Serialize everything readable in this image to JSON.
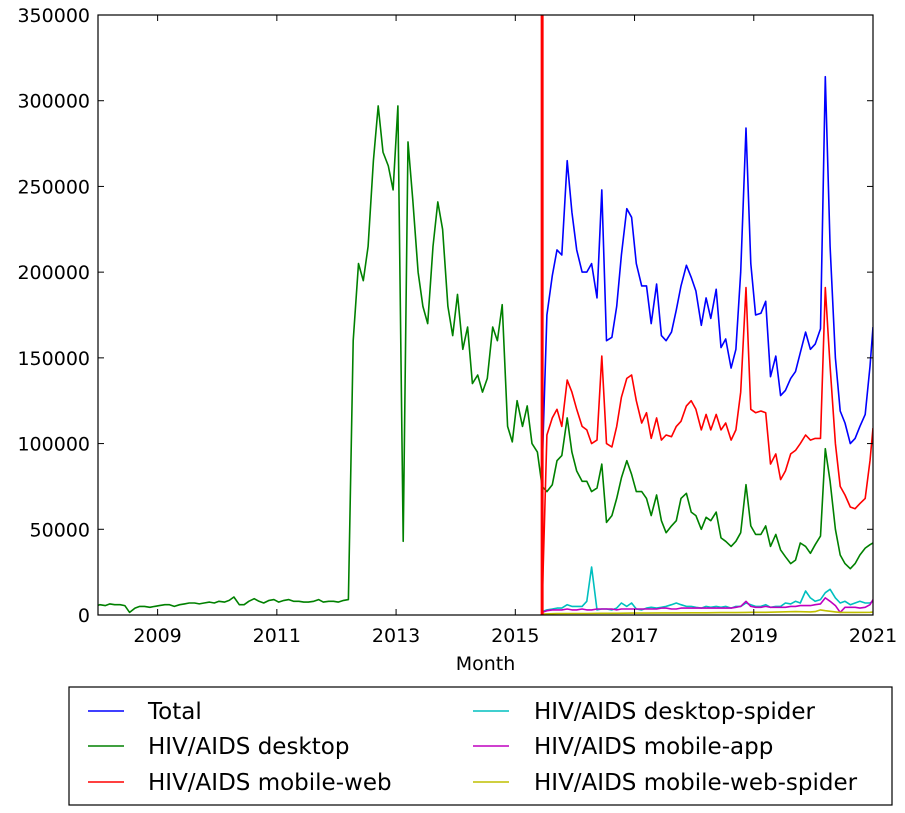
{
  "chart_data": {
    "type": "line",
    "title": "",
    "xlabel": "Month",
    "ylabel": "",
    "xlim": [
      2008.0,
      2021.0
    ],
    "ylim": [
      0,
      350000
    ],
    "grid": false,
    "legend_placement": "bottom-outside",
    "x_ticks": [
      2009,
      2011,
      2013,
      2015,
      2017,
      2019,
      2021
    ],
    "x_tick_labels": [
      "2009",
      "2011",
      "2013",
      "2015",
      "2017",
      "2019",
      "2021"
    ],
    "y_ticks": [
      0,
      50000,
      100000,
      150000,
      200000,
      250000,
      300000,
      350000
    ],
    "y_tick_labels": [
      "0",
      "50000",
      "100000",
      "150000",
      "200000",
      "250000",
      "300000",
      "350000"
    ],
    "marker_line": {
      "x": 2015.45,
      "color": "#ff0000"
    },
    "series": [
      {
        "name": "Total",
        "color": "#0000ff",
        "x": [
          2015.45,
          2015.53,
          2015.62,
          2015.7,
          2015.78,
          2015.87,
          2015.95,
          2016.03,
          2016.12,
          2016.2,
          2016.28,
          2016.37,
          2016.45,
          2016.53,
          2016.62,
          2016.7,
          2016.78,
          2016.87,
          2016.95,
          2017.03,
          2017.12,
          2017.2,
          2017.28,
          2017.37,
          2017.45,
          2017.53,
          2017.62,
          2017.7,
          2017.78,
          2017.87,
          2017.95,
          2018.03,
          2018.12,
          2018.2,
          2018.28,
          2018.37,
          2018.45,
          2018.53,
          2018.62,
          2018.7,
          2018.78,
          2018.87,
          2018.95,
          2019.03,
          2019.12,
          2019.2,
          2019.28,
          2019.37,
          2019.45,
          2019.53,
          2019.62,
          2019.7,
          2019.78,
          2019.87,
          2019.95,
          2020.03,
          2020.12,
          2020.2,
          2020.28,
          2020.37,
          2020.45,
          2020.53,
          2020.62,
          2020.7,
          2020.78,
          2020.87,
          2020.95,
          2021.0
        ],
        "y": [
          85000,
          175000,
          198000,
          213000,
          210000,
          265000,
          235000,
          213000,
          200000,
          200000,
          205000,
          185000,
          248000,
          160000,
          162000,
          180000,
          210000,
          237000,
          232000,
          205000,
          192000,
          192000,
          170000,
          193000,
          163000,
          160000,
          165000,
          178000,
          192000,
          204000,
          197000,
          189000,
          169000,
          185000,
          173000,
          190000,
          156000,
          161000,
          144000,
          155000,
          200000,
          284000,
          205000,
          175000,
          176000,
          183000,
          139000,
          151000,
          128000,
          131000,
          138000,
          142000,
          153000,
          165000,
          155000,
          158000,
          167000,
          314000,
          215000,
          150000,
          119000,
          112000,
          100000,
          103000,
          110000,
          117000,
          145000,
          168000
        ]
      },
      {
        "name": "HIV/AIDS desktop",
        "color": "#008000",
        "x": [
          2007.95,
          2008.03,
          2008.12,
          2008.2,
          2008.28,
          2008.37,
          2008.45,
          2008.53,
          2008.62,
          2008.7,
          2008.78,
          2008.87,
          2008.95,
          2009.03,
          2009.12,
          2009.2,
          2009.28,
          2009.37,
          2009.45,
          2009.53,
          2009.62,
          2009.7,
          2009.78,
          2009.87,
          2009.95,
          2010.03,
          2010.12,
          2010.2,
          2010.28,
          2010.37,
          2010.45,
          2010.53,
          2010.62,
          2010.7,
          2010.78,
          2010.87,
          2010.95,
          2011.03,
          2011.12,
          2011.2,
          2011.28,
          2011.37,
          2011.45,
          2011.53,
          2011.62,
          2011.7,
          2011.78,
          2011.87,
          2011.95,
          2012.03,
          2012.12,
          2012.2,
          2012.28,
          2012.37,
          2012.45,
          2012.53,
          2012.62,
          2012.7,
          2012.78,
          2012.87,
          2012.95,
          2013.03,
          2013.12,
          2013.2,
          2013.28,
          2013.37,
          2013.45,
          2013.53,
          2013.62,
          2013.7,
          2013.78,
          2013.87,
          2013.95,
          2014.03,
          2014.12,
          2014.2,
          2014.28,
          2014.37,
          2014.45,
          2014.53,
          2014.62,
          2014.7,
          2014.78,
          2014.87,
          2014.95,
          2015.03,
          2015.12,
          2015.2,
          2015.28,
          2015.37,
          2015.45,
          2015.53,
          2015.62,
          2015.7,
          2015.78,
          2015.87,
          2015.95,
          2016.03,
          2016.12,
          2016.2,
          2016.28,
          2016.37,
          2016.45,
          2016.53,
          2016.62,
          2016.7,
          2016.78,
          2016.87,
          2016.95,
          2017.03,
          2017.12,
          2017.2,
          2017.28,
          2017.37,
          2017.45,
          2017.53,
          2017.62,
          2017.7,
          2017.78,
          2017.87,
          2017.95,
          2018.03,
          2018.12,
          2018.2,
          2018.28,
          2018.37,
          2018.45,
          2018.53,
          2018.62,
          2018.7,
          2018.78,
          2018.87,
          2018.95,
          2019.03,
          2019.12,
          2019.2,
          2019.28,
          2019.37,
          2019.45,
          2019.53,
          2019.62,
          2019.7,
          2019.78,
          2019.87,
          2019.95,
          2020.03,
          2020.12,
          2020.2,
          2020.28,
          2020.37,
          2020.45,
          2020.53,
          2020.62,
          2020.7,
          2020.78,
          2020.87,
          2020.95,
          2021.0
        ],
        "y": [
          5000,
          6000,
          5500,
          6500,
          6000,
          6000,
          5500,
          1500,
          4000,
          5000,
          5000,
          4500,
          5000,
          5500,
          6000,
          6000,
          5000,
          6000,
          6500,
          7000,
          7000,
          6500,
          7000,
          7500,
          7000,
          8000,
          7500,
          8500,
          10500,
          6000,
          6000,
          8000,
          9500,
          8000,
          7000,
          8500,
          9000,
          7500,
          8500,
          9000,
          8000,
          8000,
          7500,
          7500,
          8000,
          9000,
          7500,
          8000,
          8000,
          7500,
          8500,
          9000,
          160000,
          205000,
          195000,
          215000,
          265000,
          297000,
          270000,
          262000,
          248000,
          297000,
          43000,
          276000,
          242000,
          200000,
          180000,
          170000,
          215000,
          241000,
          225000,
          180000,
          163000,
          187000,
          155000,
          168000,
          135000,
          140000,
          130000,
          138000,
          168000,
          160000,
          181000,
          110000,
          101000,
          125000,
          110000,
          122000,
          100000,
          95000,
          75000,
          72000,
          76000,
          90000,
          93000,
          115000,
          95000,
          84000,
          78000,
          78000,
          72000,
          74000,
          88000,
          54000,
          58000,
          68000,
          80000,
          90000,
          82000,
          72000,
          72000,
          68000,
          58000,
          70000,
          55000,
          48000,
          52000,
          55000,
          68000,
          71000,
          60000,
          58000,
          50000,
          57000,
          55000,
          60000,
          45000,
          43000,
          40000,
          43000,
          48000,
          76000,
          52000,
          47000,
          47000,
          52000,
          40000,
          47000,
          38000,
          34000,
          30000,
          32000,
          42000,
          40000,
          36000,
          41000,
          46000,
          97000,
          78000,
          50000,
          35000,
          30000,
          27000,
          30000,
          35000,
          39000,
          41000,
          42000
        ]
      },
      {
        "name": "HIV/AIDS mobile-web",
        "color": "#ff0000",
        "x": [
          2015.45,
          2015.53,
          2015.62,
          2015.7,
          2015.78,
          2015.87,
          2015.95,
          2016.03,
          2016.12,
          2016.2,
          2016.28,
          2016.37,
          2016.45,
          2016.53,
          2016.62,
          2016.7,
          2016.78,
          2016.87,
          2016.95,
          2017.03,
          2017.12,
          2017.2,
          2017.28,
          2017.37,
          2017.45,
          2017.53,
          2017.62,
          2017.7,
          2017.78,
          2017.87,
          2017.95,
          2018.03,
          2018.12,
          2018.2,
          2018.28,
          2018.37,
          2018.45,
          2018.53,
          2018.62,
          2018.7,
          2018.78,
          2018.87,
          2018.95,
          2019.03,
          2019.12,
          2019.2,
          2019.28,
          2019.37,
          2019.45,
          2019.53,
          2019.62,
          2019.7,
          2019.78,
          2019.87,
          2019.95,
          2020.03,
          2020.12,
          2020.2,
          2020.28,
          2020.37,
          2020.45,
          2020.53,
          2020.62,
          2020.7,
          2020.78,
          2020.87,
          2020.95,
          2021.0
        ],
        "y": [
          5000,
          105000,
          115000,
          120000,
          110000,
          137000,
          130000,
          120000,
          110000,
          108000,
          100000,
          102000,
          151000,
          100000,
          98000,
          110000,
          127000,
          138000,
          140000,
          125000,
          112000,
          118000,
          103000,
          115000,
          102000,
          105000,
          104000,
          110000,
          113000,
          122000,
          125000,
          120000,
          108000,
          117000,
          108000,
          117000,
          108000,
          112000,
          102000,
          108000,
          130000,
          191000,
          120000,
          118000,
          119000,
          118000,
          88000,
          94000,
          79000,
          84000,
          94000,
          96000,
          100000,
          105000,
          102000,
          103000,
          103000,
          191000,
          145000,
          100000,
          75000,
          70000,
          63000,
          62000,
          65000,
          68000,
          90000,
          109000
        ]
      },
      {
        "name": "HIV/AIDS desktop-spider",
        "color": "#00bfbf",
        "x": [
          2015.45,
          2015.53,
          2015.62,
          2015.7,
          2015.78,
          2015.87,
          2015.95,
          2016.03,
          2016.12,
          2016.2,
          2016.28,
          2016.37,
          2016.45,
          2016.53,
          2016.62,
          2016.7,
          2016.78,
          2016.87,
          2016.95,
          2017.03,
          2017.12,
          2017.2,
          2017.28,
          2017.37,
          2017.45,
          2017.53,
          2017.62,
          2017.7,
          2017.78,
          2017.87,
          2017.95,
          2018.03,
          2018.12,
          2018.2,
          2018.28,
          2018.37,
          2018.45,
          2018.53,
          2018.62,
          2018.7,
          2018.78,
          2018.87,
          2018.95,
          2019.03,
          2019.12,
          2019.2,
          2019.28,
          2019.37,
          2019.45,
          2019.53,
          2019.62,
          2019.7,
          2019.78,
          2019.87,
          2019.95,
          2020.03,
          2020.12,
          2020.2,
          2020.28,
          2020.37,
          2020.45,
          2020.53,
          2020.62,
          2020.7,
          2020.78,
          2020.87,
          2020.95,
          2021.0
        ],
        "y": [
          2000,
          3000,
          3500,
          4000,
          4000,
          6000,
          5000,
          5000,
          5000,
          8000,
          28000,
          3000,
          3500,
          3500,
          3000,
          4000,
          7000,
          5000,
          7000,
          3500,
          3000,
          4000,
          4500,
          4000,
          4500,
          5000,
          6000,
          7000,
          6000,
          5000,
          5000,
          4500,
          4000,
          5000,
          4500,
          5000,
          4500,
          5000,
          4000,
          5000,
          5000,
          7000,
          6000,
          5000,
          5000,
          6000,
          4500,
          5000,
          5000,
          7000,
          6500,
          8000,
          7000,
          14000,
          10000,
          8000,
          9000,
          13000,
          15000,
          10000,
          7000,
          8000,
          6000,
          7000,
          8000,
          7000,
          7000,
          8000
        ]
      },
      {
        "name": "HIV/AIDS mobile-app",
        "color": "#bf00bf",
        "x": [
          2015.45,
          2015.53,
          2015.62,
          2015.7,
          2015.78,
          2015.87,
          2015.95,
          2016.03,
          2016.12,
          2016.2,
          2016.28,
          2016.37,
          2016.45,
          2016.53,
          2016.62,
          2016.7,
          2016.78,
          2016.87,
          2016.95,
          2017.03,
          2017.12,
          2017.2,
          2017.28,
          2017.37,
          2017.45,
          2017.53,
          2017.62,
          2017.7,
          2017.78,
          2017.87,
          2017.95,
          2018.03,
          2018.12,
          2018.2,
          2018.28,
          2018.37,
          2018.45,
          2018.53,
          2018.62,
          2018.7,
          2018.78,
          2018.87,
          2018.95,
          2019.03,
          2019.12,
          2019.2,
          2019.28,
          2019.37,
          2019.45,
          2019.53,
          2019.62,
          2019.7,
          2019.78,
          2019.87,
          2019.95,
          2020.03,
          2020.12,
          2020.2,
          2020.28,
          2020.37,
          2020.45,
          2020.53,
          2020.62,
          2020.7,
          2020.78,
          2020.87,
          2020.95,
          2021.0
        ],
        "y": [
          1500,
          2500,
          3000,
          3000,
          3000,
          3500,
          3000,
          3000,
          3500,
          3000,
          3000,
          3500,
          3500,
          3500,
          3500,
          3000,
          3500,
          3500,
          3500,
          3500,
          3500,
          3500,
          3500,
          3500,
          4000,
          4000,
          3500,
          3500,
          4000,
          4000,
          4000,
          4000,
          4000,
          4000,
          4000,
          4000,
          4000,
          4000,
          4000,
          4500,
          5000,
          8000,
          5000,
          4500,
          4500,
          5000,
          4500,
          4500,
          4500,
          4500,
          5000,
          5000,
          5500,
          5500,
          5500,
          6000,
          6500,
          10000,
          8000,
          5500,
          1500,
          4500,
          4500,
          4500,
          4000,
          4500,
          6000,
          9000
        ]
      },
      {
        "name": "HIV/AIDS mobile-web-spider",
        "color": "#bfbf00",
        "x": [
          2015.45,
          2015.7,
          2015.95,
          2016.2,
          2016.45,
          2016.7,
          2016.95,
          2017.2,
          2017.45,
          2017.7,
          2017.95,
          2018.2,
          2018.45,
          2018.7,
          2018.87,
          2018.95,
          2019.2,
          2019.45,
          2019.7,
          2019.95,
          2020.03,
          2020.12,
          2020.2,
          2020.37,
          2020.45,
          2020.7,
          2020.95,
          2021.0
        ],
        "y": [
          500,
          800,
          900,
          900,
          1000,
          1000,
          1100,
          1100,
          1200,
          1200,
          1300,
          1300,
          1400,
          1400,
          1500,
          1600,
          1600,
          1800,
          2000,
          1800,
          2000,
          3000,
          2500,
          1800,
          1500,
          1500,
          1600,
          1700
        ]
      }
    ]
  }
}
